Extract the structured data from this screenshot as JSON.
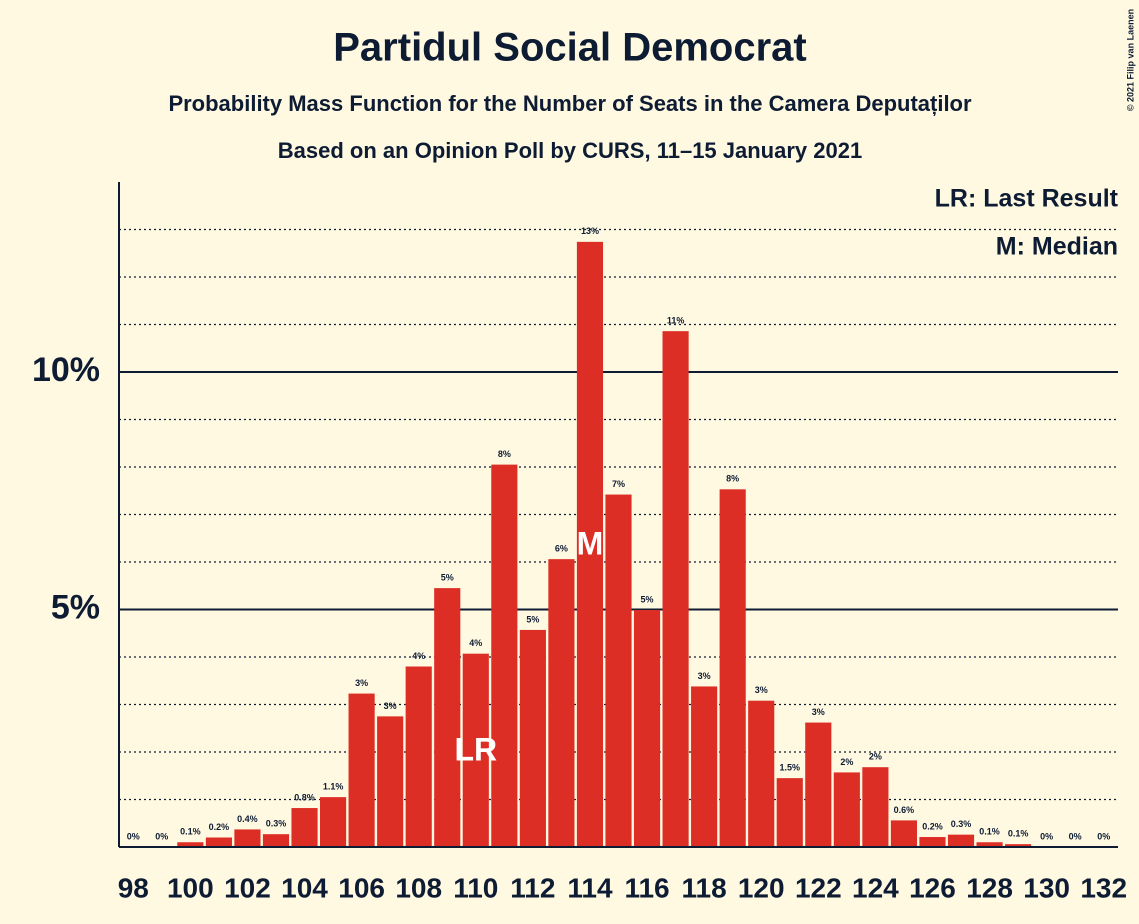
{
  "chart_data": {
    "type": "bar",
    "title": "Partidul Social Democrat",
    "subtitle": "Probability Mass Function for the Number of Seats in the Camera Deputaților",
    "source": "Based on an Opinion Poll by CURS, 11–15 January 2021",
    "copyright": "© 2021 Filip van Laenen",
    "categories": [
      98,
      null,
      100,
      null,
      102,
      null,
      104,
      null,
      106,
      null,
      108,
      null,
      110,
      null,
      112,
      null,
      114,
      null,
      116,
      null,
      118,
      null,
      120,
      null,
      122,
      null,
      124,
      null,
      126,
      null,
      128,
      null,
      130,
      null,
      132
    ],
    "values": [
      0,
      0,
      0.1,
      0.2,
      0.37,
      0.27,
      0.82,
      1.05,
      3.23,
      2.75,
      3.8,
      5.45,
      4.07,
      8.05,
      4.57,
      6.06,
      12.74,
      7.42,
      4.99,
      10.86,
      3.38,
      7.53,
      3.08,
      1.45,
      2.62,
      1.57,
      1.68,
      0.56,
      0.21,
      0.26,
      0.1,
      0.06,
      0,
      0,
      0
    ],
    "value_labels": [
      "0%",
      "0%",
      "0.1%",
      "0.2%",
      "0.4%",
      "0.3%",
      "0.8%",
      "1.1%",
      "3%",
      "3%",
      "4%",
      "5%",
      "4%",
      "8%",
      "5%",
      "6%",
      "13%",
      "7%",
      "5%",
      "11%",
      "3%",
      "8%",
      "3%",
      "1.5%",
      "3%",
      "2%",
      "2%",
      "0.6%",
      "0.2%",
      "0.3%",
      "0.1%",
      "0.1%",
      "0%",
      "0%",
      "0%"
    ],
    "color": "#dd2e25",
    "ylim": [
      0,
      14
    ],
    "yticks": [
      {
        "value": 5,
        "label": "5%"
      },
      {
        "value": 10,
        "label": "10%"
      }
    ],
    "minor_yticks": [
      1,
      2,
      3,
      4,
      6,
      7,
      8,
      9,
      11,
      12,
      13
    ],
    "grid": true,
    "markers": [
      {
        "label": "LR",
        "x": 110
      },
      {
        "label": "M",
        "x": 114
      }
    ],
    "legend": [
      "LR: Last Result",
      "M: Median"
    ],
    "legend_position": "upper right"
  }
}
